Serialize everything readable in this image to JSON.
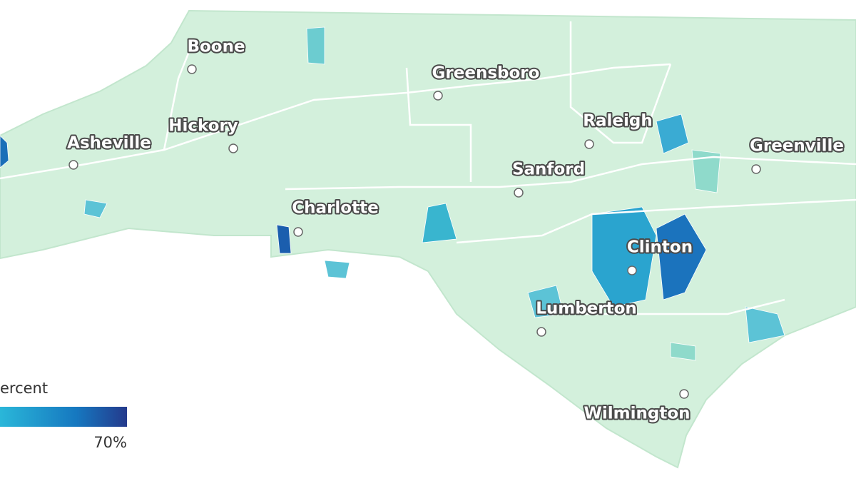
{
  "legend": {
    "title": "ercent",
    "max_label": "70%"
  },
  "cities": [
    {
      "label": "Boone"
    },
    {
      "label": "Greensboro"
    },
    {
      "label": "Hickory"
    },
    {
      "label": "Asheville"
    },
    {
      "label": "Raleigh"
    },
    {
      "label": "Sanford"
    },
    {
      "label": "Greenville"
    },
    {
      "label": "Charlotte"
    },
    {
      "label": "Clinton"
    },
    {
      "label": "Lumberton"
    },
    {
      "label": "Wilmington"
    }
  ]
}
